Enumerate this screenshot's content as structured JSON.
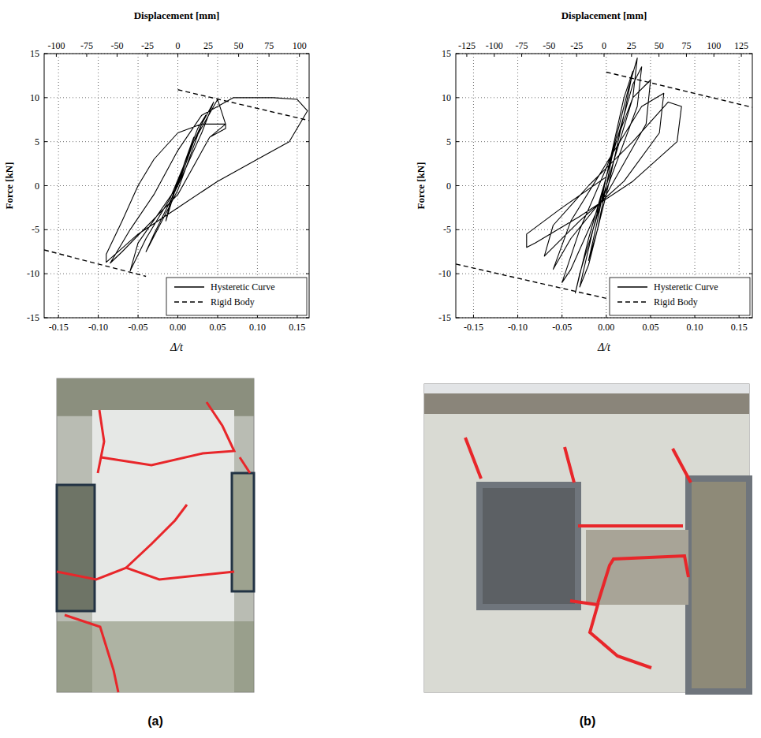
{
  "chart_data": [
    {
      "type": "line",
      "caption": "(a)",
      "x_label": "Δ/t",
      "x2_label": "Displacement [mm]",
      "y_label": "Force [kN]",
      "xlim": [
        -0.168,
        0.165
      ],
      "xticks": [
        -0.15,
        {
          "value": -0.1,
          "label": "-0.10"
        },
        -0.05,
        {
          "value": 0,
          "label": "0.00"
        },
        0.05,
        {
          "value": 0.1,
          "label": "0.10"
        },
        0.15
      ],
      "x2lim": [
        -110,
        108
      ],
      "x2ticks": [
        -100,
        -75,
        -50,
        -25,
        0,
        25,
        50,
        75,
        100
      ],
      "ylim": [
        -15,
        15
      ],
      "yticks": [
        -15,
        -10,
        -5,
        0,
        5,
        10,
        15
      ],
      "grid": true,
      "legend": "lower right",
      "series": [
        {
          "name": "Hysteretic Curve",
          "color": "#000000",
          "line_style": "solid",
          "x": [
            0,
            0.01,
            0.02,
            0.01,
            -0.005,
            -0.015,
            -0.01,
            0,
            0.025,
            0.035,
            0.02,
            0,
            -0.03,
            -0.04,
            -0.02,
            0,
            0.03,
            0.045,
            0.03,
            0,
            -0.05,
            -0.06,
            -0.04,
            -0.01,
            0.02,
            0.05,
            0.06,
            0.04,
            0,
            -0.07,
            -0.085,
            -0.06,
            -0.03,
            0,
            0.03,
            0.07,
            0.12,
            0.15,
            0.163,
            0.14,
            0.1,
            0.05,
            0,
            -0.05,
            -0.09,
            -0.09,
            -0.07,
            -0.05,
            -0.03,
            0,
            0.03,
            0.06,
            0.06,
            0.04
          ],
          "values": [
            0,
            3,
            5.5,
            3,
            -1,
            -4,
            -2,
            0.5,
            6.5,
            8,
            5,
            0,
            -5.5,
            -7.5,
            -4,
            -0.5,
            7,
            9.5,
            6,
            0,
            -6.5,
            -9.7,
            -6,
            -1.5,
            5,
            9.8,
            7,
            5.5,
            -1,
            -7.5,
            -8.8,
            -5,
            -1,
            4,
            8,
            10,
            10,
            9.8,
            8.5,
            5,
            3,
            0.5,
            -2.5,
            -5.5,
            -8.7,
            -7.8,
            -4,
            0,
            3,
            6,
            7,
            7,
            6.5,
            5.5
          ]
        },
        {
          "name": "Rigid Body",
          "color": "#000000",
          "line_style": "dashed",
          "x": [
            -0.168,
            -0.04,
            -0.02,
            0,
            0.165
          ],
          "values": [
            -7.3,
            -10.3,
            null,
            10.9,
            7.4
          ]
        }
      ]
    },
    {
      "type": "line",
      "caption": "(b)",
      "x_label": "Δ/t",
      "x2_label": "Displacement [mm]",
      "y_label": "Force [kN]",
      "xlim": [
        -0.17,
        0.165
      ],
      "xticks": [
        -0.15,
        {
          "value": -0.1,
          "label": "-0.10"
        },
        -0.05,
        {
          "value": 0,
          "label": "0.00"
        },
        0.05,
        {
          "value": 0.1,
          "label": "0.10"
        },
        0.15
      ],
      "x2lim": [
        -135,
        135
      ],
      "x2ticks": [
        -125,
        -100,
        -75,
        -50,
        -25,
        0,
        25,
        50,
        75,
        100,
        125
      ],
      "ylim": [
        -15,
        15
      ],
      "yticks": [
        -15,
        -10,
        -5,
        0,
        5,
        10,
        15
      ],
      "grid": true,
      "legend": "lower right",
      "series": [
        {
          "name": "Hysteretic Curve",
          "color": "#000000",
          "line_style": "solid",
          "x": [
            0,
            0.01,
            0.02,
            0.01,
            0,
            -0.01,
            -0.02,
            -0.01,
            0,
            0.02,
            0.03,
            0.02,
            0,
            -0.02,
            -0.03,
            -0.015,
            0,
            0.025,
            0.035,
            0.03,
            0,
            -0.03,
            -0.035,
            -0.02,
            0,
            0.03,
            0.04,
            0.035,
            0,
            -0.04,
            -0.05,
            -0.03,
            0,
            0.03,
            0.05,
            0.045,
            0,
            -0.04,
            -0.06,
            -0.04,
            0,
            0.04,
            0.065,
            0.06,
            0.02,
            -0.03,
            -0.07,
            -0.06,
            -0.02,
            0.03,
            0.07,
            0.085,
            0.08,
            0.03,
            -0.03,
            -0.08,
            -0.09,
            -0.09,
            -0.05,
            0
          ],
          "values": [
            0,
            5,
            9,
            5,
            0,
            -5,
            -8.5,
            -4,
            1,
            10,
            13,
            8,
            -1,
            -9,
            -11.5,
            -5,
            1,
            11,
            14.5,
            10,
            0,
            -10,
            -12.2,
            -6,
            1,
            11.5,
            13.5,
            9,
            -0.5,
            -9.5,
            -11,
            -5,
            2,
            10,
            12,
            7,
            -1,
            -6,
            -9.5,
            -4,
            2.5,
            9,
            10.5,
            6,
            0.5,
            -4,
            -8,
            -4.5,
            0,
            5,
            9.5,
            9,
            5,
            0.5,
            -3.5,
            -6.5,
            -7,
            -5.5,
            -2.5,
            1
          ]
        },
        {
          "name": "Rigid Body",
          "color": "#000000",
          "line_style": "dashed",
          "x": [
            -0.17,
            0,
            0,
            0,
            0.165
          ],
          "values": [
            -8.9,
            -12.8,
            null,
            12.9,
            8.9
          ]
        }
      ]
    }
  ]
}
